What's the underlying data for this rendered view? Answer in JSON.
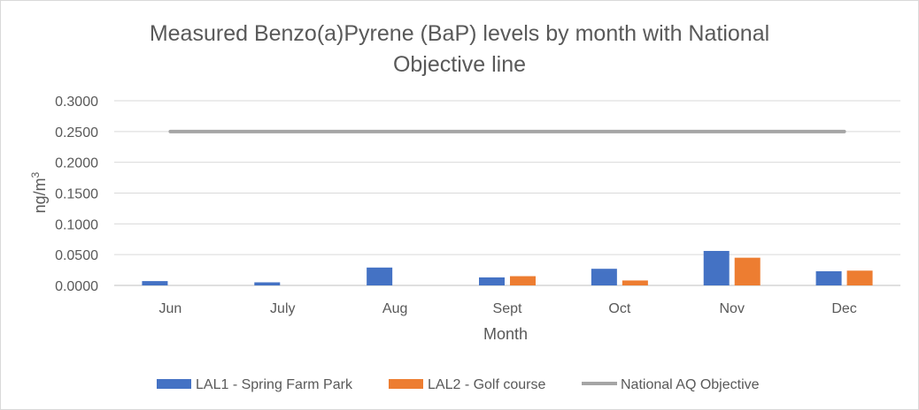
{
  "chart_data": {
    "type": "bar",
    "title_lines": [
      "Measured Benzo(a)Pyrene (BaP) levels by month with National",
      "Objective line"
    ],
    "xlabel": "Month",
    "ylabel": {
      "base": "ng/m",
      "superscript": "3"
    },
    "ylim": [
      0,
      0.3
    ],
    "y_ticks": [
      0,
      0.05,
      0.1,
      0.15,
      0.2,
      0.25,
      0.3
    ],
    "y_tick_labels": [
      "0.0000",
      "0.0500",
      "0.1000",
      "0.1500",
      "0.2000",
      "0.2500",
      "0.3000"
    ],
    "grid": true,
    "legend_position": "bottom",
    "categories": [
      "Jun",
      "July",
      "Aug",
      "Sept",
      "Oct",
      "Nov",
      "Dec"
    ],
    "series": [
      {
        "name": "LAL1 - Spring Farm Park",
        "kind": "bar",
        "color": "#4472c4",
        "values": [
          0.007,
          0.005,
          0.029,
          0.013,
          0.027,
          0.056,
          0.023
        ]
      },
      {
        "name": "LAL2 - Golf course",
        "kind": "bar",
        "color": "#ed7d31",
        "values": [
          null,
          null,
          null,
          0.015,
          0.008,
          0.045,
          0.024
        ]
      },
      {
        "name": "National AQ Objective",
        "kind": "line",
        "color": "#a5a5a5",
        "values": [
          0.25,
          0.25,
          0.25,
          0.25,
          0.25,
          0.25,
          0.25
        ]
      }
    ]
  }
}
